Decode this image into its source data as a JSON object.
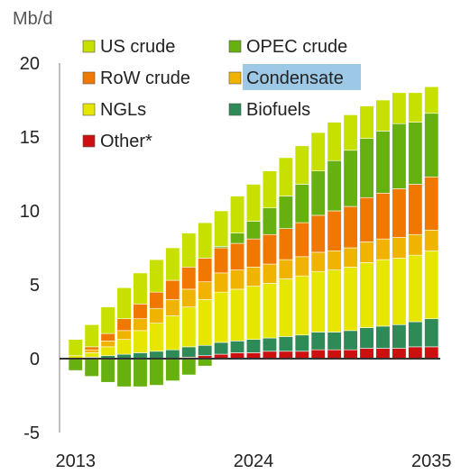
{
  "chart_data": {
    "type": "bar",
    "stacked": true,
    "ylabel": "Mb/d",
    "ylim": [
      -5,
      20
    ],
    "yticks": [
      -5,
      0,
      5,
      10,
      15,
      20
    ],
    "x_tick_labels": [
      "2013",
      "2024",
      "2035"
    ],
    "categories": [
      2013,
      2014,
      2015,
      2016,
      2017,
      2018,
      2019,
      2020,
      2021,
      2022,
      2023,
      2024,
      2025,
      2026,
      2027,
      2028,
      2029,
      2030,
      2031,
      2032,
      2033,
      2034,
      2035
    ],
    "grid": false,
    "legend_position": "top-left",
    "highlighted_legend_entry": "Condensate",
    "series": [
      {
        "name": "Other*",
        "color": "#cc1010",
        "values": [
          0,
          0,
          0,
          0,
          0,
          0,
          0,
          0.1,
          0.2,
          0.3,
          0.4,
          0.4,
          0.5,
          0.5,
          0.5,
          0.6,
          0.6,
          0.6,
          0.7,
          0.7,
          0.7,
          0.8,
          0.8
        ]
      },
      {
        "name": "Biofuels",
        "color": "#2e8b57",
        "values": [
          0,
          0.1,
          0.2,
          0.3,
          0.4,
          0.5,
          0.6,
          0.7,
          0.7,
          0.8,
          0.8,
          0.9,
          0.9,
          1.0,
          1.1,
          1.2,
          1.2,
          1.3,
          1.4,
          1.5,
          1.6,
          1.7,
          1.9
        ]
      },
      {
        "name": "NGLs",
        "color": "#e6e600",
        "values": [
          0.2,
          0.3,
          0.6,
          1.0,
          1.5,
          1.9,
          2.3,
          2.7,
          3.1,
          3.4,
          3.5,
          3.6,
          3.7,
          3.9,
          4.0,
          4.1,
          4.2,
          4.3,
          4.4,
          4.5,
          4.5,
          4.5,
          4.6
        ]
      },
      {
        "name": "Condensate",
        "color": "#f0b400",
        "values": [
          0,
          0.2,
          0.4,
          0.6,
          0.8,
          1.0,
          1.1,
          1.2,
          1.2,
          1.3,
          1.3,
          1.3,
          1.3,
          1.3,
          1.3,
          1.3,
          1.3,
          1.3,
          1.4,
          1.4,
          1.4,
          1.4,
          1.4
        ]
      },
      {
        "name": "RoW crude",
        "color": "#f07800",
        "values": [
          0,
          0.2,
          0.5,
          0.8,
          1.0,
          1.1,
          1.3,
          1.5,
          1.6,
          1.7,
          1.8,
          1.9,
          2.0,
          2.1,
          2.3,
          2.5,
          2.7,
          2.8,
          3.0,
          3.1,
          3.3,
          3.4,
          3.6
        ]
      },
      {
        "name": "OPEC crude",
        "color": "#66b010",
        "values": [
          -0.8,
          -1.2,
          -1.6,
          -1.9,
          -1.9,
          -1.8,
          -1.5,
          -1.1,
          -0.5,
          0.1,
          0.7,
          1.2,
          1.8,
          2.2,
          2.6,
          3.0,
          3.4,
          3.8,
          4.0,
          4.2,
          4.4,
          4.2,
          4.3
        ]
      },
      {
        "name": "US crude",
        "color": "#c8e000",
        "values": [
          1.1,
          1.5,
          1.8,
          2.1,
          2.1,
          2.2,
          2.2,
          2.3,
          2.4,
          2.4,
          2.5,
          2.5,
          2.5,
          2.6,
          2.6,
          2.6,
          2.6,
          2.4,
          2.2,
          2.1,
          2.1,
          2.0,
          1.8
        ]
      }
    ],
    "legend": [
      {
        "name": "US crude",
        "color": "#c8e000"
      },
      {
        "name": "OPEC crude",
        "color": "#66b010"
      },
      {
        "name": "RoW crude",
        "color": "#f07800"
      },
      {
        "name": "Condensate",
        "color": "#f0b400"
      },
      {
        "name": "NGLs",
        "color": "#e6e600"
      },
      {
        "name": "Biofuels",
        "color": "#2e8b57"
      },
      {
        "name": "Other*",
        "color": "#cc1010"
      }
    ],
    "legend_highlight_color": "#9ec9e6"
  }
}
